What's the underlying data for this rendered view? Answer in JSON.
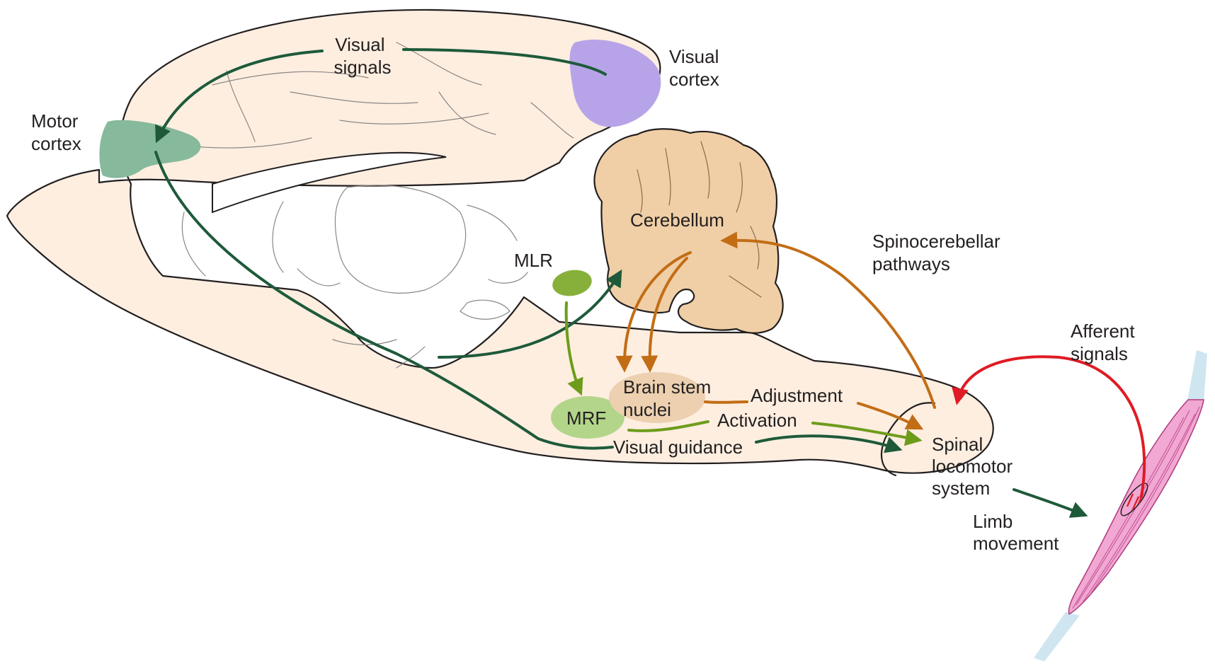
{
  "labels": {
    "visual_signals": [
      "Visual",
      "signals"
    ],
    "visual_cortex": [
      "Visual",
      "cortex"
    ],
    "motor_cortex": [
      "Motor",
      "cortex"
    ],
    "cerebellum": "Cerebellum",
    "spinocerebellar": [
      "Spinocerebellar",
      "pathways"
    ],
    "mlr": "MLR",
    "mrf": "MRF",
    "brain_stem_nuclei": [
      "Brain stem",
      "nuclei"
    ],
    "adjustment": "Adjustment",
    "activation": "Activation",
    "visual_guidance": "Visual guidance",
    "spinal_locomotor": [
      "Spinal",
      "locomotor",
      "system"
    ],
    "afferent_signals": [
      "Afferent",
      "signals"
    ],
    "limb_movement": [
      "Limb",
      "movement"
    ]
  },
  "colors": {
    "tissue": "#fdeee0",
    "cerebellum": "#f0cfa6",
    "visual_cortex": "#b7a4e8",
    "motor_cortex": "#87b99c",
    "mlr": "#87b03a",
    "mrf": "#b2d58a",
    "brain_stem_nuclei": "#ecd0b0",
    "muscle": "#f1a8d2",
    "tendon": "#cfe6f1",
    "pathway_dark_green": "#1e5a3a",
    "pathway_light_green": "#6d9c1b",
    "pathway_orange": "#c26d15",
    "pathway_red": "#e01b24"
  }
}
